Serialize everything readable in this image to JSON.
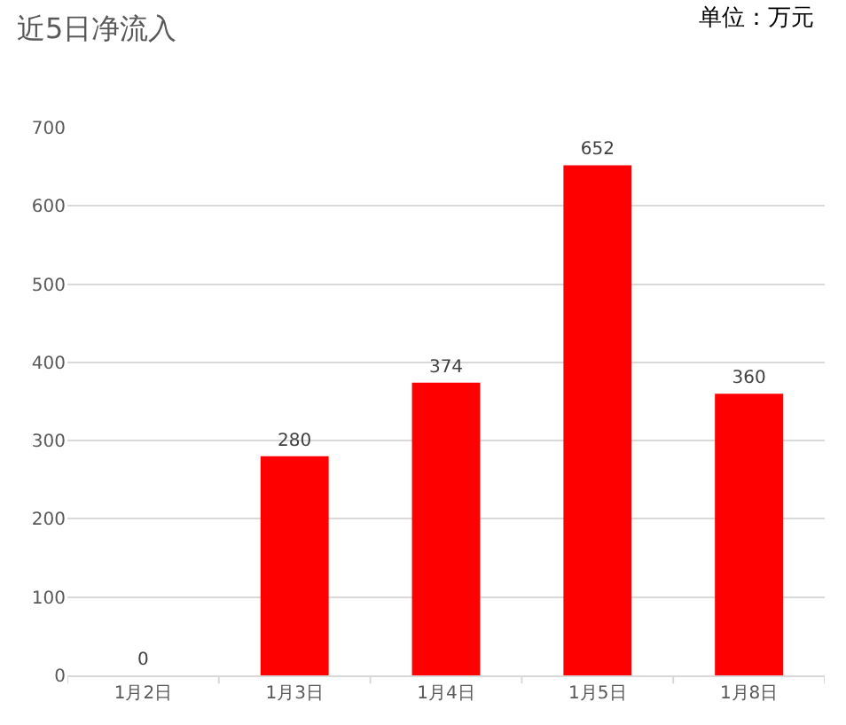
{
  "chart_data": {
    "type": "bar",
    "title": "近5日净流入",
    "annotations": [
      "单位：万元"
    ],
    "categories": [
      "1月2日",
      "1月3日",
      "1月4日",
      "1月5日",
      "1月8日"
    ],
    "values": [
      0,
      280,
      374,
      652,
      360
    ],
    "color": "#ff0000",
    "ylim": [
      0,
      700
    ],
    "yticks": [
      0,
      100,
      200,
      300,
      400,
      500,
      600,
      700
    ],
    "grid": "y",
    "data_labels": true,
    "legend": false
  }
}
